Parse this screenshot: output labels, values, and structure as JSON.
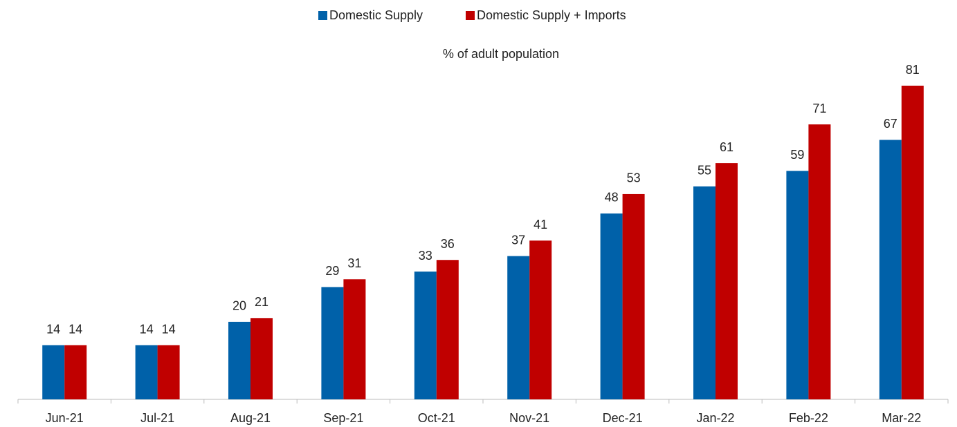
{
  "chart_data": {
    "type": "bar",
    "subtitle": "% of adult population",
    "categories": [
      "Jun-21",
      "Jul-21",
      "Aug-21",
      "Sep-21",
      "Oct-21",
      "Nov-21",
      "Dec-21",
      "Jan-22",
      "Feb-22",
      "Mar-22"
    ],
    "series": [
      {
        "name": "Domestic Supply",
        "color": "#0061a9",
        "values": [
          14,
          14,
          20,
          29,
          33,
          37,
          48,
          55,
          59,
          67
        ]
      },
      {
        "name": "Domestic Supply + Imports",
        "color": "#c00000",
        "values": [
          14,
          14,
          21,
          31,
          36,
          41,
          53,
          61,
          71,
          81
        ]
      }
    ],
    "legend": "top"
  }
}
